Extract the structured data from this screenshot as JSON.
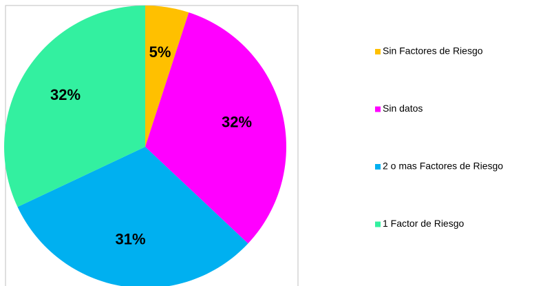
{
  "chart_data": {
    "type": "pie",
    "categories": [
      "Sin Factores de Riesgo",
      "Sin datos",
      "2 o mas Factores de Riesgo",
      "1 Factor de Riesgo"
    ],
    "values": [
      5,
      32,
      31,
      32
    ],
    "value_labels": [
      "5%",
      "32%",
      "31%",
      "32%"
    ],
    "colors": [
      "#FFC000",
      "#FF00FF",
      "#00B0F0",
      "#33F0A0"
    ],
    "legend": "right"
  }
}
